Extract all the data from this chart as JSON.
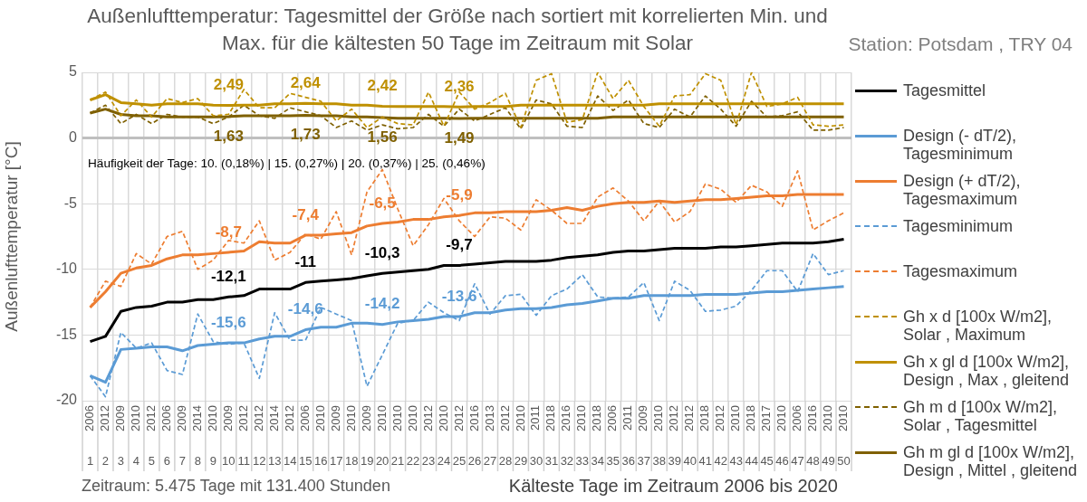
{
  "chart_data": {
    "type": "line",
    "title": "Außenlufttemperatur: Tagesmittel der Größe nach sortiert mit korrelierten Min. und\nMax. für die kältesten 50 Tage im Zeitraum mit Solar",
    "subtitle": "Station: Potsdam , TRY 04",
    "xlabel": "Kälteste Tage im Zeitraum 2006 bis 2020",
    "ylabel": "Außenlufttemperatur [°C]",
    "annotations": [
      "Häufigkeit der Tage: 10. (0,18%) | 15. (0,27%) | 20. (0,37%) | 25. (0,46%)",
      "Zeitraum: 5.475 Tage mit 131.400 Stunden"
    ],
    "categories": [
      "2006\n1",
      "2012\n2",
      "2009\n3",
      "2010\n4",
      "2012\n5",
      "2006\n6",
      "2009\n7",
      "2014\n8",
      "2010\n9",
      "2009\n10",
      "2012\n11",
      "2012\n12",
      "2014\n13",
      "2012\n14",
      "2006\n15",
      "2010\n16",
      "2009\n17",
      "2010\n18",
      "2009\n19",
      "2010\n20",
      "2010\n21",
      "2010\n22",
      "2012\n23",
      "2010\n24",
      "2012\n25",
      "2016\n26",
      "2013\n27",
      "2012\n28",
      "2010\n29",
      "2011\n30",
      "2018\n31",
      "2016\n32",
      "2010\n33",
      "2018\n34",
      "2006\n35",
      "2011\n36",
      "2009\n37",
      "2010\n38",
      "2012\n39",
      "2012\n40",
      "2018\n41",
      "2012\n42",
      "2010\n43",
      "2018\n44",
      "2017\n45",
      "2010\n46",
      "2006\n47",
      "2016\n48",
      "2010\n49",
      "2010\n50"
    ],
    "series": [
      {
        "name": "Tagesmittel",
        "color": "#000000",
        "line_style": "solid",
        "values": [
          -15.5,
          -15.1,
          -13.2,
          -12.9,
          -12.8,
          -12.5,
          -12.5,
          -12.3,
          -12.3,
          -12.1,
          -12.0,
          -11.5,
          -11.5,
          -11.5,
          -11.0,
          -10.9,
          -10.8,
          -10.7,
          -10.5,
          -10.3,
          -10.2,
          -10.1,
          -10.0,
          -9.7,
          -9.7,
          -9.6,
          -9.5,
          -9.4,
          -9.4,
          -9.4,
          -9.3,
          -9.1,
          -9.0,
          -8.9,
          -8.7,
          -8.6,
          -8.6,
          -8.5,
          -8.4,
          -8.4,
          -8.4,
          -8.3,
          -8.3,
          -8.2,
          -8.1,
          -8.0,
          -8.0,
          -8.0,
          -7.9,
          -7.7
        ],
        "value_labels": [
          null,
          null,
          null,
          null,
          null,
          null,
          null,
          null,
          null,
          "-12,1",
          null,
          null,
          null,
          null,
          "-11",
          null,
          null,
          null,
          null,
          "-10,3",
          null,
          null,
          null,
          null,
          "-9,7",
          null,
          null,
          null,
          null,
          null,
          null,
          null,
          null,
          null,
          null,
          null,
          null,
          null,
          null,
          null,
          null,
          null,
          null,
          null,
          null,
          null,
          null,
          null,
          null,
          null
        ]
      },
      {
        "name": "Design (- dT/2), Tagesminimum",
        "color": "#5b9bd5",
        "line_style": "solid",
        "values": [
          -18.1,
          -18.6,
          -16.1,
          -16.0,
          -15.9,
          -15.9,
          -16.2,
          -15.8,
          -15.7,
          -15.6,
          -15.6,
          -15.3,
          -15.1,
          -15.1,
          -14.6,
          -14.4,
          -14.4,
          -14.1,
          -14.1,
          -14.2,
          -14.0,
          -13.9,
          -13.8,
          -13.6,
          -13.6,
          -13.3,
          -13.3,
          -13.1,
          -13.0,
          -13.0,
          -12.9,
          -12.7,
          -12.6,
          -12.4,
          -12.2,
          -12.2,
          -12.0,
          -12.0,
          -12.0,
          -12.0,
          -11.9,
          -11.9,
          -11.9,
          -11.8,
          -11.7,
          -11.7,
          -11.6,
          -11.5,
          -11.4,
          -11.3
        ],
        "value_labels": [
          null,
          null,
          null,
          null,
          null,
          null,
          null,
          null,
          null,
          "-15,6",
          null,
          null,
          null,
          null,
          "-14,6",
          null,
          null,
          null,
          null,
          "-14,2",
          null,
          null,
          null,
          null,
          "-13,6",
          null,
          null,
          null,
          null,
          null,
          null,
          null,
          null,
          null,
          null,
          null,
          null,
          null,
          null,
          null,
          null,
          null,
          null,
          null,
          null,
          null,
          null,
          null,
          null,
          null
        ]
      },
      {
        "name": "Design (+ dT/2), Tagesmaximum",
        "color": "#ed7d31",
        "line_style": "solid",
        "values": [
          -12.9,
          -11.7,
          -10.3,
          -9.9,
          -9.7,
          -9.2,
          -8.9,
          -8.9,
          -8.8,
          -8.7,
          -8.6,
          -7.9,
          -8.0,
          -8.0,
          -7.4,
          -7.4,
          -7.3,
          -7.2,
          -6.7,
          -6.5,
          -6.4,
          -6.2,
          -6.2,
          -6.0,
          -5.9,
          -5.7,
          -5.7,
          -5.6,
          -5.6,
          -5.6,
          -5.5,
          -5.3,
          -5.5,
          -5.2,
          -5.0,
          -4.9,
          -4.9,
          -4.8,
          -4.9,
          -4.8,
          -4.7,
          -4.7,
          -4.6,
          -4.5,
          -4.4,
          -4.4,
          -4.3,
          -4.3,
          -4.3,
          -4.3
        ],
        "value_labels": [
          null,
          null,
          null,
          null,
          null,
          null,
          null,
          null,
          null,
          "-8,7",
          null,
          null,
          null,
          null,
          "-7,4",
          null,
          null,
          null,
          null,
          "-6,5",
          null,
          null,
          null,
          null,
          "-5,9",
          null,
          null,
          null,
          null,
          null,
          null,
          null,
          null,
          null,
          null,
          null,
          null,
          null,
          null,
          null,
          null,
          null,
          null,
          null,
          null,
          null,
          null,
          null,
          null,
          null
        ]
      },
      {
        "name": "Tagesminimum",
        "color": "#5b9bd5",
        "line_style": "dashed",
        "values": [
          -18.1,
          -19.7,
          -14.8,
          -16.0,
          -15.6,
          -17.7,
          -18.0,
          -13.4,
          -15.5,
          -15.7,
          -15.6,
          -18.3,
          -13.3,
          -15.4,
          -15.4,
          -12.9,
          -13.4,
          -13.9,
          -18.9,
          -16.5,
          -14.1,
          -13.9,
          -12.5,
          -13.3,
          -13.9,
          -11.1,
          -13.4,
          -12.0,
          -11.9,
          -13.5,
          -12.0,
          -11.5,
          -10.4,
          -12.1,
          -12.2,
          -12.1,
          -11.0,
          -13.9,
          -10.9,
          -11.6,
          -13.2,
          -13.1,
          -12.8,
          -11.6,
          -10.1,
          -10.1,
          -11.7,
          -8.8,
          -10.4,
          -10.1
        ]
      },
      {
        "name": "Tagesmaximum",
        "color": "#ed7d31",
        "line_style": "dashed",
        "values": [
          -12.9,
          -10.9,
          -11.3,
          -8.8,
          -9.6,
          -7.5,
          -7.1,
          -10.0,
          -9.3,
          -7.8,
          -8.0,
          -6.3,
          -9.3,
          -8.7,
          -7.3,
          -7.7,
          -5.6,
          -8.9,
          -4.1,
          -2.4,
          -5.4,
          -8.2,
          -6.6,
          -4.6,
          -6.3,
          -7.5,
          -6.0,
          -6.1,
          -7.0,
          -4.7,
          -5.5,
          -6.5,
          -6.5,
          -4.5,
          -3.8,
          -4.8,
          -6.3,
          -4.8,
          -6.4,
          -5.6,
          -3.5,
          -3.9,
          -4.9,
          -3.6,
          -4.1,
          -5.2,
          -2.5,
          -7.0,
          -6.3,
          -5.7
        ]
      },
      {
        "name": "Gh x d [100x W/m2], Solar , Maximum",
        "color": "#bf9000",
        "line_style": "dashed",
        "values": [
          2.9,
          3.5,
          1.7,
          2.9,
          1.6,
          3.0,
          2.7,
          3.0,
          1.7,
          1.8,
          3.7,
          2.3,
          2.3,
          3.4,
          3.1,
          2.8,
          1.3,
          2.2,
          0.8,
          1.6,
          1.1,
          1.0,
          3.5,
          0.9,
          3.5,
          2.2,
          2.7,
          3.4,
          0.8,
          4.4,
          4.9,
          1.2,
          1.4,
          5.0,
          3.0,
          4.4,
          2.4,
          0.9,
          3.2,
          3.3,
          4.9,
          4.4,
          1.0,
          5.0,
          2.4,
          2.6,
          3.1,
          1.0,
          0.9,
          1.0
        ]
      },
      {
        "name": "Gh x gl d [100x W/m2], Design , Max , gleitend",
        "color": "#bf9000",
        "line_style": "solid",
        "values": [
          2.9,
          3.3,
          2.7,
          2.6,
          2.5,
          2.6,
          2.6,
          2.6,
          2.5,
          2.49,
          2.5,
          2.5,
          2.6,
          2.6,
          2.64,
          2.6,
          2.6,
          2.5,
          2.5,
          2.42,
          2.4,
          2.4,
          2.4,
          2.4,
          2.36,
          2.4,
          2.4,
          2.4,
          2.5,
          2.5,
          2.5,
          2.5,
          2.5,
          2.5,
          2.5,
          2.5,
          2.5,
          2.6,
          2.6,
          2.6,
          2.6,
          2.6,
          2.6,
          2.6,
          2.6,
          2.6,
          2.6,
          2.6,
          2.6,
          2.6
        ],
        "value_labels": [
          null,
          null,
          null,
          null,
          null,
          null,
          null,
          null,
          null,
          "2,49",
          null,
          null,
          null,
          null,
          "2,64",
          null,
          null,
          null,
          null,
          "2,42",
          null,
          null,
          null,
          null,
          "2,36",
          null,
          null,
          null,
          null,
          null,
          null,
          null,
          null,
          null,
          null,
          null,
          null,
          null,
          null,
          null,
          null,
          null,
          null,
          null,
          null,
          null,
          null,
          null,
          null,
          null
        ]
      },
      {
        "name": "Gh m d [100x W/m2], Solar , Tagesmittel",
        "color": "#7f6000",
        "line_style": "dashed",
        "values": [
          1.9,
          2.5,
          1.1,
          1.8,
          1.1,
          1.8,
          1.6,
          1.6,
          1.1,
          1.6,
          2.5,
          1.7,
          1.5,
          2.3,
          2.0,
          1.7,
          0.8,
          1.3,
          0.6,
          1.0,
          0.7,
          0.8,
          1.8,
          0.9,
          2.2,
          1.3,
          1.8,
          2.3,
          0.7,
          2.9,
          2.6,
          0.9,
          0.8,
          3.2,
          2.1,
          2.9,
          1.1,
          0.8,
          2.2,
          1.6,
          3.2,
          2.2,
          0.9,
          2.8,
          1.6,
          1.7,
          2.0,
          0.6,
          0.6,
          0.8
        ]
      },
      {
        "name": "Gh m gl d [100x W/m2], Design , Mittel , gleitend",
        "color": "#7f6000",
        "line_style": "solid",
        "values": [
          1.9,
          2.2,
          1.8,
          1.7,
          1.7,
          1.6,
          1.6,
          1.6,
          1.6,
          1.63,
          1.7,
          1.7,
          1.7,
          1.7,
          1.73,
          1.7,
          1.7,
          1.6,
          1.6,
          1.56,
          1.5,
          1.5,
          1.5,
          1.5,
          1.49,
          1.5,
          1.5,
          1.5,
          1.5,
          1.5,
          1.5,
          1.5,
          1.5,
          1.5,
          1.6,
          1.6,
          1.6,
          1.6,
          1.6,
          1.6,
          1.6,
          1.6,
          1.6,
          1.6,
          1.6,
          1.6,
          1.6,
          1.6,
          1.6,
          1.6
        ],
        "value_labels": [
          null,
          null,
          null,
          null,
          null,
          null,
          null,
          null,
          null,
          "1,63",
          null,
          null,
          null,
          null,
          "1,73",
          null,
          null,
          null,
          null,
          "1,56",
          null,
          null,
          null,
          null,
          "1,49",
          null,
          null,
          null,
          null,
          null,
          null,
          null,
          null,
          null,
          null,
          null,
          null,
          null,
          null,
          null,
          null,
          null,
          null,
          null,
          null,
          null,
          null,
          null,
          null,
          null
        ]
      }
    ],
    "ylim": [
      -20,
      5
    ],
    "yticks": [
      -20,
      -15,
      -10,
      -5,
      0,
      5
    ],
    "grid": true,
    "legend": "right",
    "marker": "none"
  }
}
